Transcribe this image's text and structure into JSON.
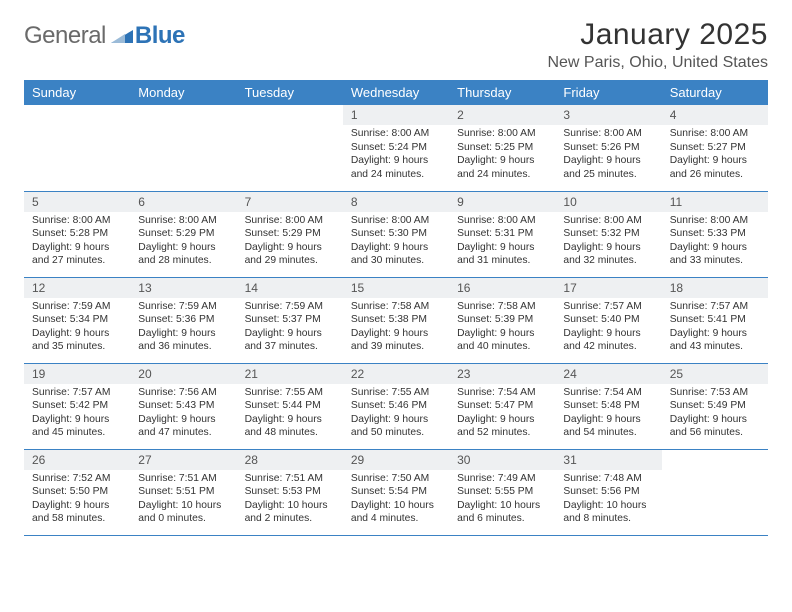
{
  "logo": {
    "part1": "General",
    "part2": "Blue"
  },
  "brand_gray": "#6a6a6a",
  "brand_blue": "#2d73b6",
  "header_bg": "#3b82c4",
  "daynum_bg": "#eef0f2",
  "title": "January 2025",
  "location": "New Paris, Ohio, United States",
  "weekdays": [
    "Sunday",
    "Monday",
    "Tuesday",
    "Wednesday",
    "Thursday",
    "Friday",
    "Saturday"
  ],
  "weeks": [
    [
      {
        "n": "",
        "sr": "",
        "ss": "",
        "dl": ""
      },
      {
        "n": "",
        "sr": "",
        "ss": "",
        "dl": ""
      },
      {
        "n": "",
        "sr": "",
        "ss": "",
        "dl": ""
      },
      {
        "n": "1",
        "sr": "8:00 AM",
        "ss": "5:24 PM",
        "dl": "9 hours and 24 minutes."
      },
      {
        "n": "2",
        "sr": "8:00 AM",
        "ss": "5:25 PM",
        "dl": "9 hours and 24 minutes."
      },
      {
        "n": "3",
        "sr": "8:00 AM",
        "ss": "5:26 PM",
        "dl": "9 hours and 25 minutes."
      },
      {
        "n": "4",
        "sr": "8:00 AM",
        "ss": "5:27 PM",
        "dl": "9 hours and 26 minutes."
      }
    ],
    [
      {
        "n": "5",
        "sr": "8:00 AM",
        "ss": "5:28 PM",
        "dl": "9 hours and 27 minutes."
      },
      {
        "n": "6",
        "sr": "8:00 AM",
        "ss": "5:29 PM",
        "dl": "9 hours and 28 minutes."
      },
      {
        "n": "7",
        "sr": "8:00 AM",
        "ss": "5:29 PM",
        "dl": "9 hours and 29 minutes."
      },
      {
        "n": "8",
        "sr": "8:00 AM",
        "ss": "5:30 PM",
        "dl": "9 hours and 30 minutes."
      },
      {
        "n": "9",
        "sr": "8:00 AM",
        "ss": "5:31 PM",
        "dl": "9 hours and 31 minutes."
      },
      {
        "n": "10",
        "sr": "8:00 AM",
        "ss": "5:32 PM",
        "dl": "9 hours and 32 minutes."
      },
      {
        "n": "11",
        "sr": "8:00 AM",
        "ss": "5:33 PM",
        "dl": "9 hours and 33 minutes."
      }
    ],
    [
      {
        "n": "12",
        "sr": "7:59 AM",
        "ss": "5:34 PM",
        "dl": "9 hours and 35 minutes."
      },
      {
        "n": "13",
        "sr": "7:59 AM",
        "ss": "5:36 PM",
        "dl": "9 hours and 36 minutes."
      },
      {
        "n": "14",
        "sr": "7:59 AM",
        "ss": "5:37 PM",
        "dl": "9 hours and 37 minutes."
      },
      {
        "n": "15",
        "sr": "7:58 AM",
        "ss": "5:38 PM",
        "dl": "9 hours and 39 minutes."
      },
      {
        "n": "16",
        "sr": "7:58 AM",
        "ss": "5:39 PM",
        "dl": "9 hours and 40 minutes."
      },
      {
        "n": "17",
        "sr": "7:57 AM",
        "ss": "5:40 PM",
        "dl": "9 hours and 42 minutes."
      },
      {
        "n": "18",
        "sr": "7:57 AM",
        "ss": "5:41 PM",
        "dl": "9 hours and 43 minutes."
      }
    ],
    [
      {
        "n": "19",
        "sr": "7:57 AM",
        "ss": "5:42 PM",
        "dl": "9 hours and 45 minutes."
      },
      {
        "n": "20",
        "sr": "7:56 AM",
        "ss": "5:43 PM",
        "dl": "9 hours and 47 minutes."
      },
      {
        "n": "21",
        "sr": "7:55 AM",
        "ss": "5:44 PM",
        "dl": "9 hours and 48 minutes."
      },
      {
        "n": "22",
        "sr": "7:55 AM",
        "ss": "5:46 PM",
        "dl": "9 hours and 50 minutes."
      },
      {
        "n": "23",
        "sr": "7:54 AM",
        "ss": "5:47 PM",
        "dl": "9 hours and 52 minutes."
      },
      {
        "n": "24",
        "sr": "7:54 AM",
        "ss": "5:48 PM",
        "dl": "9 hours and 54 minutes."
      },
      {
        "n": "25",
        "sr": "7:53 AM",
        "ss": "5:49 PM",
        "dl": "9 hours and 56 minutes."
      }
    ],
    [
      {
        "n": "26",
        "sr": "7:52 AM",
        "ss": "5:50 PM",
        "dl": "9 hours and 58 minutes."
      },
      {
        "n": "27",
        "sr": "7:51 AM",
        "ss": "5:51 PM",
        "dl": "10 hours and 0 minutes."
      },
      {
        "n": "28",
        "sr": "7:51 AM",
        "ss": "5:53 PM",
        "dl": "10 hours and 2 minutes."
      },
      {
        "n": "29",
        "sr": "7:50 AM",
        "ss": "5:54 PM",
        "dl": "10 hours and 4 minutes."
      },
      {
        "n": "30",
        "sr": "7:49 AM",
        "ss": "5:55 PM",
        "dl": "10 hours and 6 minutes."
      },
      {
        "n": "31",
        "sr": "7:48 AM",
        "ss": "5:56 PM",
        "dl": "10 hours and 8 minutes."
      },
      {
        "n": "",
        "sr": "",
        "ss": "",
        "dl": ""
      }
    ]
  ],
  "labels": {
    "sunrise": "Sunrise: ",
    "sunset": "Sunset: ",
    "daylight": "Daylight: "
  }
}
